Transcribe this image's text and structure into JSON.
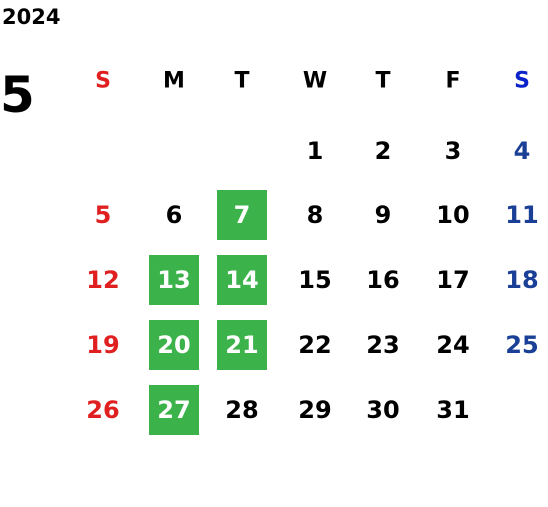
{
  "calendar": {
    "year": "2024",
    "month": "5",
    "weekdays": [
      "S",
      "M",
      "T",
      "W",
      "T",
      "F",
      "S"
    ],
    "weeks": [
      [
        null,
        null,
        null,
        {
          "day": 1
        },
        {
          "day": 2
        },
        {
          "day": 3
        },
        {
          "day": 4
        }
      ],
      [
        {
          "day": 5
        },
        {
          "day": 6
        },
        {
          "day": 7,
          "highlight": true
        },
        {
          "day": 8
        },
        {
          "day": 9
        },
        {
          "day": 10
        },
        {
          "day": 11
        }
      ],
      [
        {
          "day": 12
        },
        {
          "day": 13,
          "highlight": true
        },
        {
          "day": 14,
          "highlight": true
        },
        {
          "day": 15
        },
        {
          "day": 16
        },
        {
          "day": 17
        },
        {
          "day": 18
        }
      ],
      [
        {
          "day": 19
        },
        {
          "day": 20,
          "highlight": true
        },
        {
          "day": 21,
          "highlight": true
        },
        {
          "day": 22
        },
        {
          "day": 23
        },
        {
          "day": 24
        },
        {
          "day": 25
        }
      ],
      [
        {
          "day": 26
        },
        {
          "day": 27,
          "highlight": true
        },
        {
          "day": 28
        },
        {
          "day": 29
        },
        {
          "day": 30
        },
        {
          "day": 31
        },
        null
      ]
    ]
  }
}
